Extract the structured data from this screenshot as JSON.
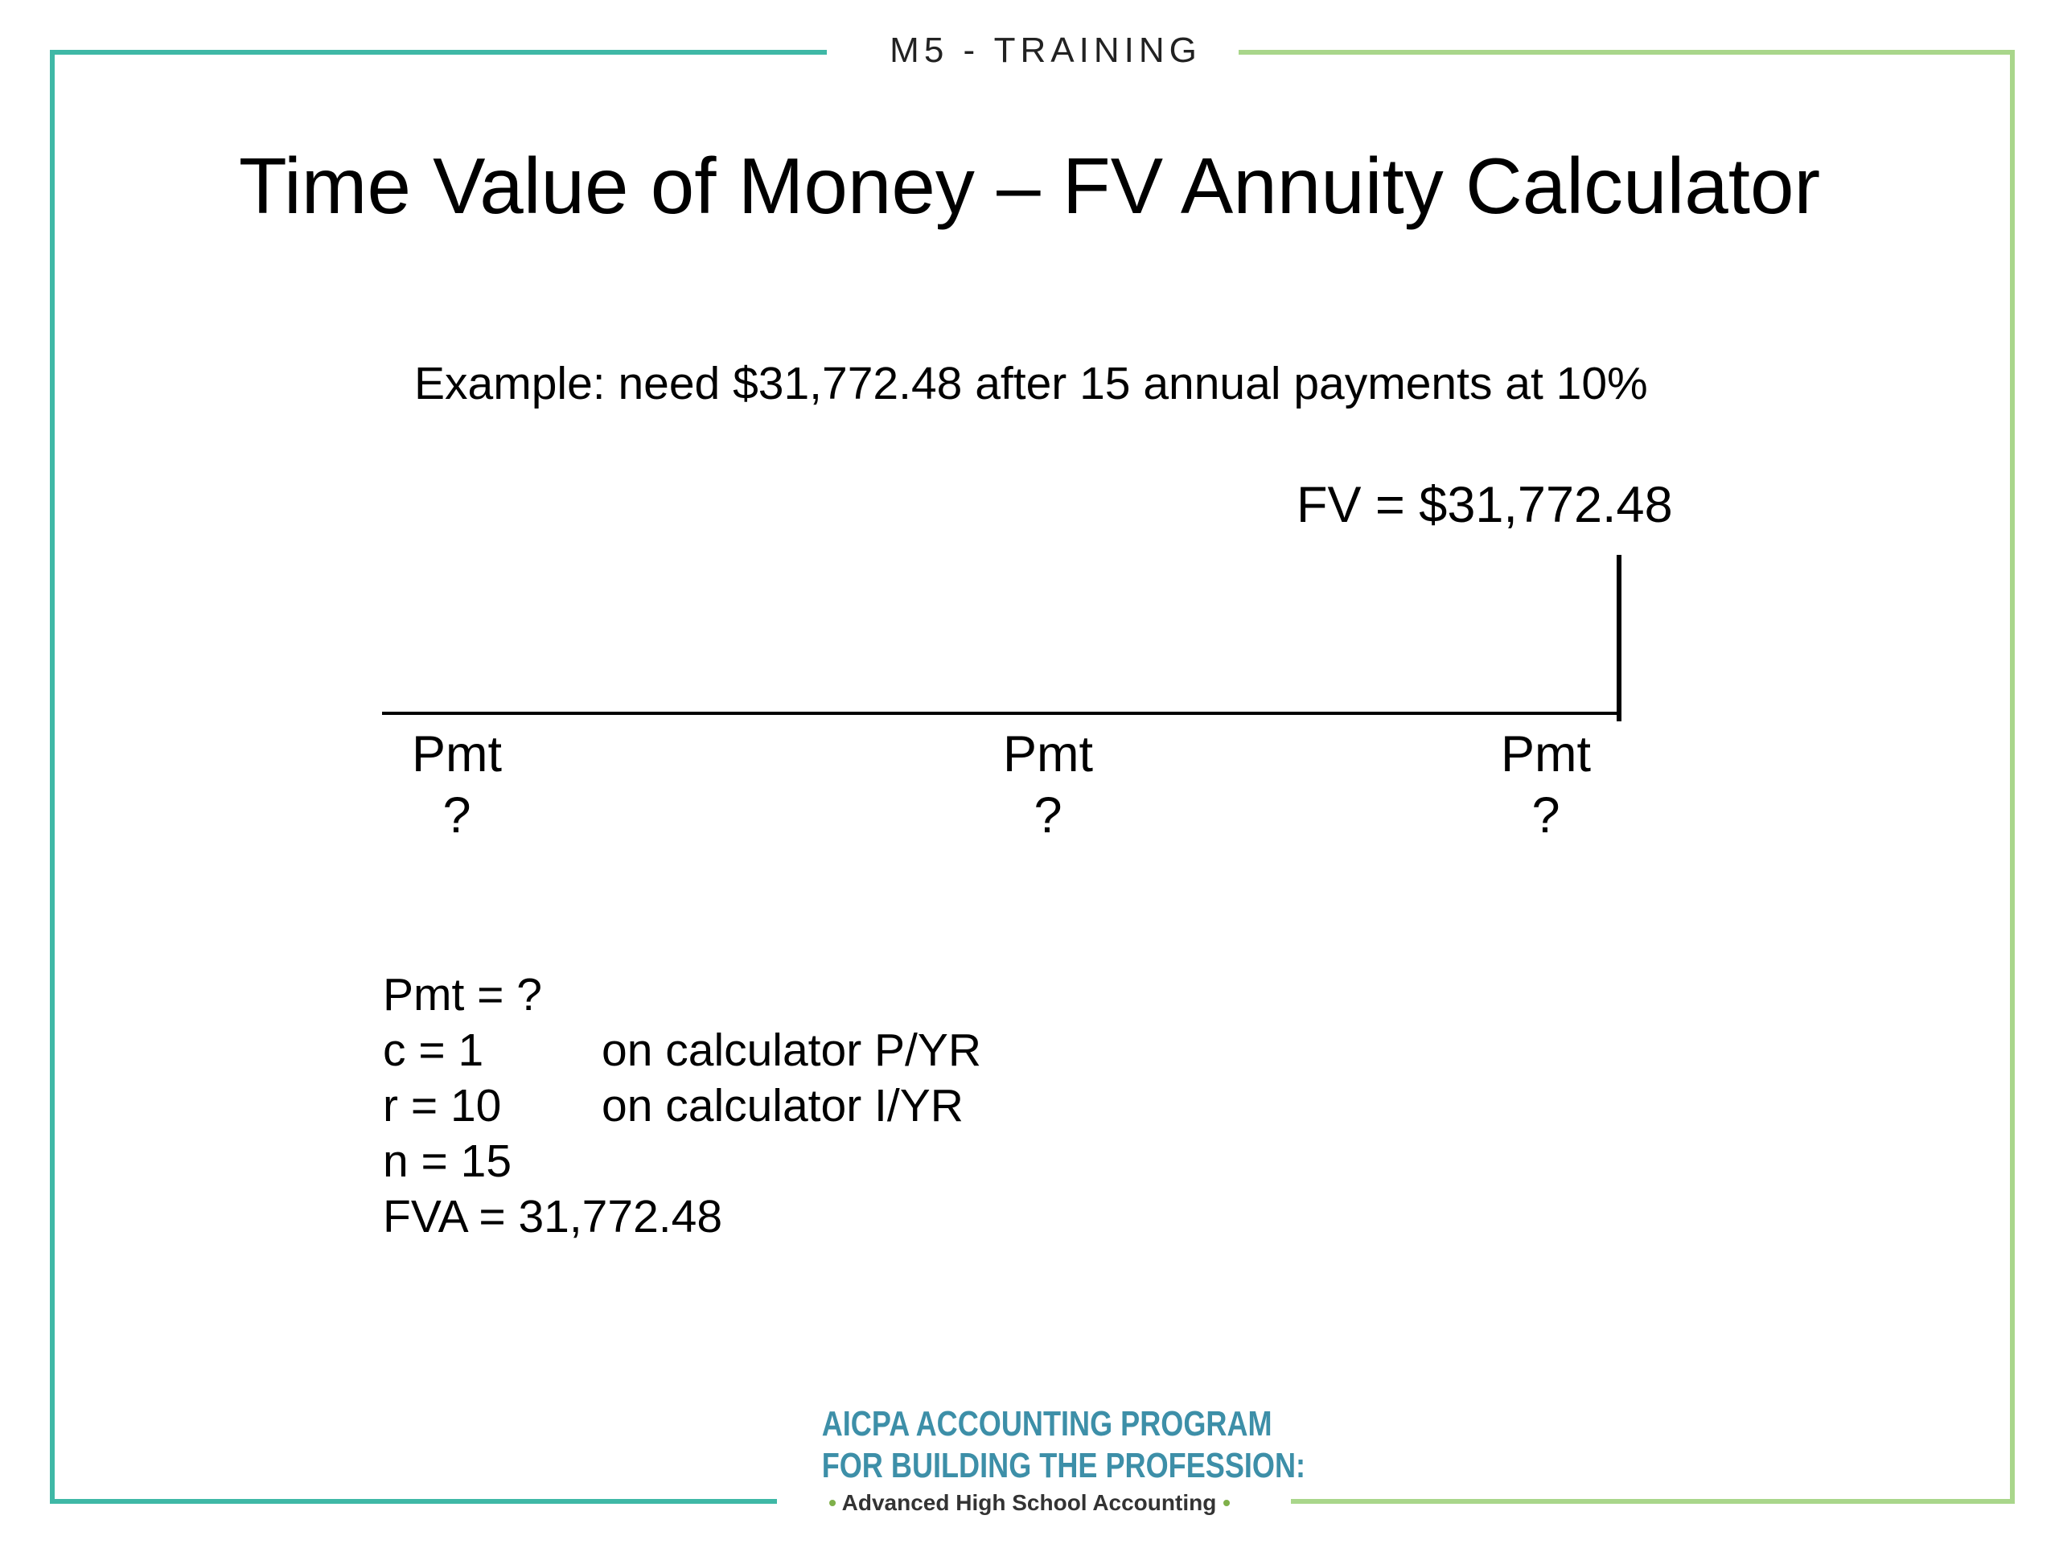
{
  "header": {
    "label": "M5 - TRAINING"
  },
  "title": "Time Value of Money – FV Annuity Calculator",
  "example": "Example: need $31,772.48 after 15 annual payments at 10%",
  "timeline": {
    "fv_label": "FV = $31,772.48",
    "payments": [
      {
        "label": "Pmt",
        "value": "?"
      },
      {
        "label": "Pmt",
        "value": "?"
      },
      {
        "label": "Pmt",
        "value": "?"
      }
    ]
  },
  "formula": {
    "rows": [
      {
        "left": "Pmt = ?",
        "right": ""
      },
      {
        "left": "c = 1",
        "right": "on calculator P/YR"
      },
      {
        "left": "r = 10",
        "right": "on calculator I/YR"
      },
      {
        "left": "n = 15",
        "right": ""
      },
      {
        "left": "FVA = 31,772.48",
        "right": ""
      }
    ]
  },
  "footer": {
    "logo_line1": "AICPA ACCOUNTING PROGRAM",
    "logo_line2": "FOR BUILDING THE PROFESSION:",
    "logo_sub": "Advanced High School Accounting"
  },
  "colors": {
    "frame_left": "#3fb8a6",
    "frame_right": "#a9d68b",
    "logo_text": "#3d8fa8",
    "logo_dot": "#7fb04a"
  }
}
